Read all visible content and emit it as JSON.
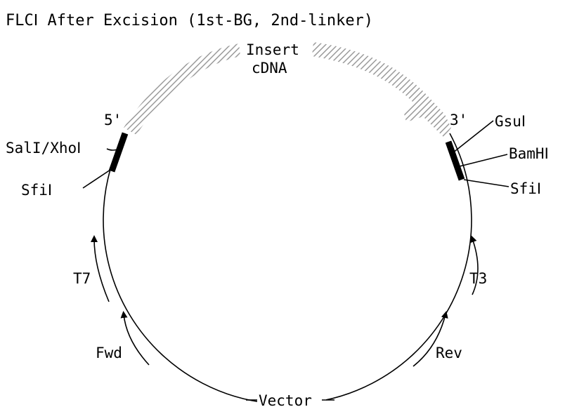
{
  "title": "FLCⅠ After Excision (1st-BG, 2nd-linker)",
  "insert": {
    "line1": "Insert",
    "line2": "cDNA"
  },
  "ends": {
    "five_prime": "5'",
    "three_prime": "3'"
  },
  "left_sites": {
    "sal_xho": "SalI/XhoⅠ",
    "sfi": "SfiⅠ"
  },
  "right_sites": {
    "gsu": "GsuⅠ",
    "bam": "BamHⅠ",
    "sfi": "SfiⅠ"
  },
  "primers": {
    "t7": "T7",
    "fwd": "Fwd",
    "t3": "T3",
    "rev": "Rev"
  },
  "vector": "Vector",
  "colors": {
    "hatch": "#9a9a9a",
    "line": "#000000",
    "background": "#ffffff"
  }
}
